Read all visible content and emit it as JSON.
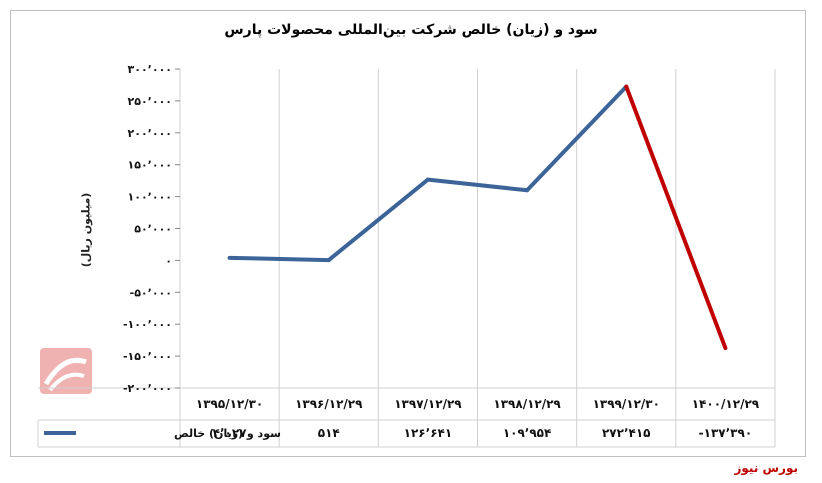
{
  "chart_data": {
    "type": "line",
    "title": "سود و (زیان) خالص شرکت بین‌المللی محصولات پارس",
    "ylabel": "(میلیون ریال)",
    "ylim": [
      -200000,
      300000
    ],
    "yticks": [
      -200000,
      -150000,
      -100000,
      -50000,
      0,
      50000,
      100000,
      150000,
      200000,
      250000,
      300000
    ],
    "ytick_labels": [
      "-۲۰۰٬۰۰۰",
      "-۱۵۰٬۰۰۰",
      "-۱۰۰٬۰۰۰",
      "-۵۰٬۰۰۰",
      "۰",
      "۵۰٬۰۰۰",
      "۱۰۰٬۰۰۰",
      "۱۵۰٬۰۰۰",
      "۲۰۰٬۰۰۰",
      "۲۵۰٬۰۰۰",
      "۳۰۰٬۰۰۰"
    ],
    "categories": [
      "۱۳۹۵/۱۲/۳۰",
      "۱۳۹۶/۱۲/۲۹",
      "۱۳۹۷/۱۲/۲۹",
      "۱۳۹۸/۱۲/۲۹",
      "۱۳۹۹/۱۲/۳۰",
      "۱۴۰۰/۱۲/۲۹"
    ],
    "series": [
      {
        "name": "سود و (زیان) خالص",
        "values": [
          4027,
          514,
          126641,
          109954,
          272415,
          -137390
        ],
        "value_labels": [
          "۴٬۰۲۷",
          "۵۱۴",
          "۱۲۶٬۶۴۱",
          "۱۰۹٬۹۵۴",
          "۲۷۲٬۴۱۵",
          "-۱۳۷٬۳۹۰"
        ],
        "color": "#3c6499",
        "negative_segment_color": "#c00000"
      }
    ],
    "grid": "vertical-only",
    "legend": "data-table-left"
  },
  "footer": {
    "brand": "بورس نیوز"
  },
  "watermark_text": "بورس نیوز"
}
